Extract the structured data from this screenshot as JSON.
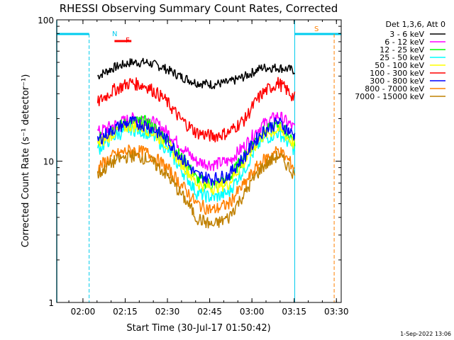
{
  "chart_data": {
    "type": "line",
    "title": "RHESSI Observing Summary Count Rates, Corrected",
    "xlabel": "Start Time (30-Jul-17 01:50:42)",
    "ylabel": "Corrected Count Rate (s⁻¹ detector⁻¹)",
    "x_ticks": [
      "02:00",
      "02:15",
      "02:30",
      "02:45",
      "03:00",
      "03:15",
      "03:30"
    ],
    "x_tick_minutes": [
      9.3,
      24.3,
      39.3,
      54.3,
      69.3,
      84.3,
      99.3
    ],
    "x_range_minutes": [
      0,
      101
    ],
    "y_scale": "log",
    "ylim": [
      1,
      100
    ],
    "y_ticks": [
      "1",
      "10",
      "100"
    ],
    "legend_title": "Det 1,3,6, Att 0",
    "legend_position": "right",
    "data_span_minutes": [
      14.5,
      84.5
    ],
    "series": [
      {
        "name": "3 - 6 keV",
        "color": "#000000",
        "values": [
          40,
          46,
          50,
          50,
          46,
          40,
          36,
          35,
          36,
          40,
          46,
          46,
          44
        ]
      },
      {
        "name": "6 - 12 keV",
        "color": "#ff00ff",
        "values": [
          16,
          18,
          20,
          20,
          17,
          13,
          10,
          9.5,
          10,
          13,
          18,
          21,
          17
        ]
      },
      {
        "name": "12 - 25 keV",
        "color": "#00ff00",
        "values": [
          14,
          17,
          19,
          19,
          15,
          11,
          7.5,
          6.8,
          7.5,
          11,
          16,
          18,
          14
        ]
      },
      {
        "name": "25 - 50 keV",
        "color": "#00ffff",
        "values": [
          12,
          15,
          17,
          16,
          13,
          9,
          6,
          5.5,
          6,
          9,
          14,
          16,
          12
        ]
      },
      {
        "name": "50 - 100 keV",
        "color": "#ffff00",
        "values": [
          13,
          16,
          18,
          17,
          14,
          10,
          7,
          6.5,
          7,
          10,
          15,
          17,
          13
        ]
      },
      {
        "name": "100 - 300 keV",
        "color": "#ff0000",
        "values": [
          26,
          32,
          36,
          34,
          28,
          20,
          16,
          15,
          16,
          20,
          30,
          36,
          28
        ]
      },
      {
        "name": "300 - 800 keV",
        "color": "#0000ff",
        "values": [
          14,
          17,
          19,
          18,
          15,
          11,
          8,
          7.5,
          8,
          11,
          16,
          19,
          15
        ]
      },
      {
        "name": "800 - 7000 keV",
        "color": "#ff8000",
        "values": [
          9,
          11,
          12,
          11.5,
          9.5,
          7,
          5,
          4.5,
          5,
          7,
          10,
          12,
          9
        ]
      },
      {
        "name": "7000 - 15000 keV",
        "color": "#c08000",
        "values": [
          8,
          10,
          11,
          10.5,
          8.5,
          6,
          4,
          3.5,
          4,
          6,
          9,
          11,
          8
        ]
      }
    ],
    "annotations": {
      "N_label": "N",
      "F_label": "F",
      "S_label": "S",
      "timestamp": "1-Sep-2022 13:06"
    },
    "flags": {
      "night_minutes": [
        [
          0,
          11.5
        ],
        [
          84.5,
          101
        ]
      ],
      "night_marker_minutes": [
        11.5,
        84.5
      ],
      "saa_minute": 98.5,
      "flare_minutes": [
        20.5,
        26.5
      ]
    }
  }
}
